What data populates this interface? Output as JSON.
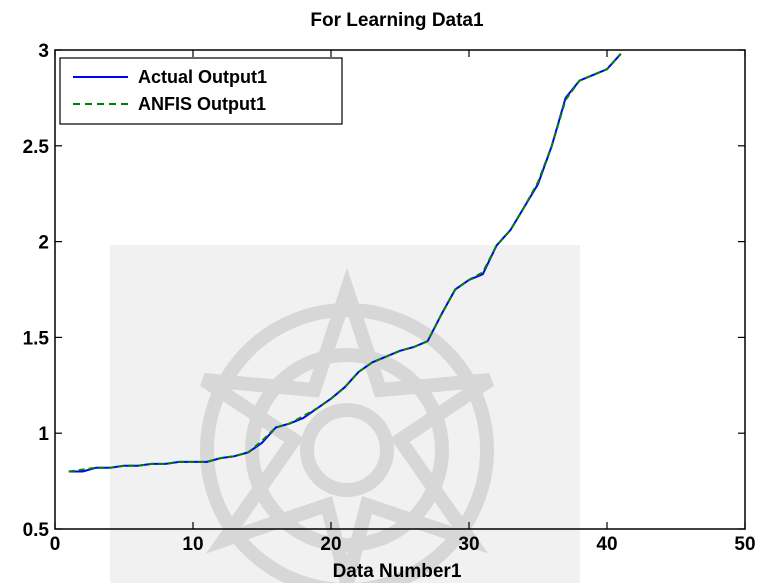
{
  "chart_data": {
    "type": "line",
    "title": "For Learning Data1",
    "xlabel": "Data Number1",
    "ylabel": "",
    "xlim": [
      0,
      50
    ],
    "ylim": [
      0.5,
      3
    ],
    "xticks": [
      0,
      10,
      20,
      30,
      40,
      50
    ],
    "yticks": [
      0.5,
      1,
      1.5,
      2,
      2.5,
      3
    ],
    "xtick_labels": [
      "0",
      "10",
      "20",
      "30",
      "40",
      "50"
    ],
    "ytick_labels": [
      "0.5",
      "1",
      "1.5",
      "2",
      "2.5",
      "3"
    ],
    "grid": false,
    "legend_position": "top-left",
    "x": [
      1,
      2,
      3,
      4,
      5,
      6,
      7,
      8,
      9,
      10,
      11,
      12,
      13,
      14,
      15,
      16,
      17,
      18,
      19,
      20,
      21,
      22,
      23,
      24,
      25,
      26,
      27,
      28,
      29,
      30,
      31,
      32,
      33,
      34,
      35,
      36,
      37,
      38,
      39,
      40,
      41
    ],
    "series": [
      {
        "name": "Actual Output1",
        "color": "#0000ff",
        "dash": "solid",
        "values": [
          0.8,
          0.8,
          0.82,
          0.82,
          0.83,
          0.83,
          0.84,
          0.84,
          0.85,
          0.85,
          0.85,
          0.87,
          0.88,
          0.9,
          0.95,
          1.03,
          1.05,
          1.08,
          1.13,
          1.18,
          1.24,
          1.32,
          1.37,
          1.4,
          1.43,
          1.45,
          1.48,
          1.62,
          1.75,
          1.8,
          1.83,
          1.98,
          2.06,
          2.18,
          2.3,
          2.5,
          2.75,
          2.84,
          2.87,
          2.9,
          2.98
        ]
      },
      {
        "name": "ANFIS Output1",
        "color": "#008000",
        "dash": "dashed",
        "values": [
          0.8,
          0.81,
          0.82,
          0.82,
          0.83,
          0.83,
          0.84,
          0.84,
          0.85,
          0.85,
          0.85,
          0.87,
          0.88,
          0.9,
          0.96,
          1.03,
          1.05,
          1.09,
          1.13,
          1.18,
          1.24,
          1.32,
          1.37,
          1.4,
          1.43,
          1.45,
          1.48,
          1.62,
          1.75,
          1.8,
          1.84,
          1.98,
          2.06,
          2.18,
          2.31,
          2.5,
          2.74,
          2.84,
          2.87,
          2.9,
          2.98
        ]
      }
    ]
  }
}
